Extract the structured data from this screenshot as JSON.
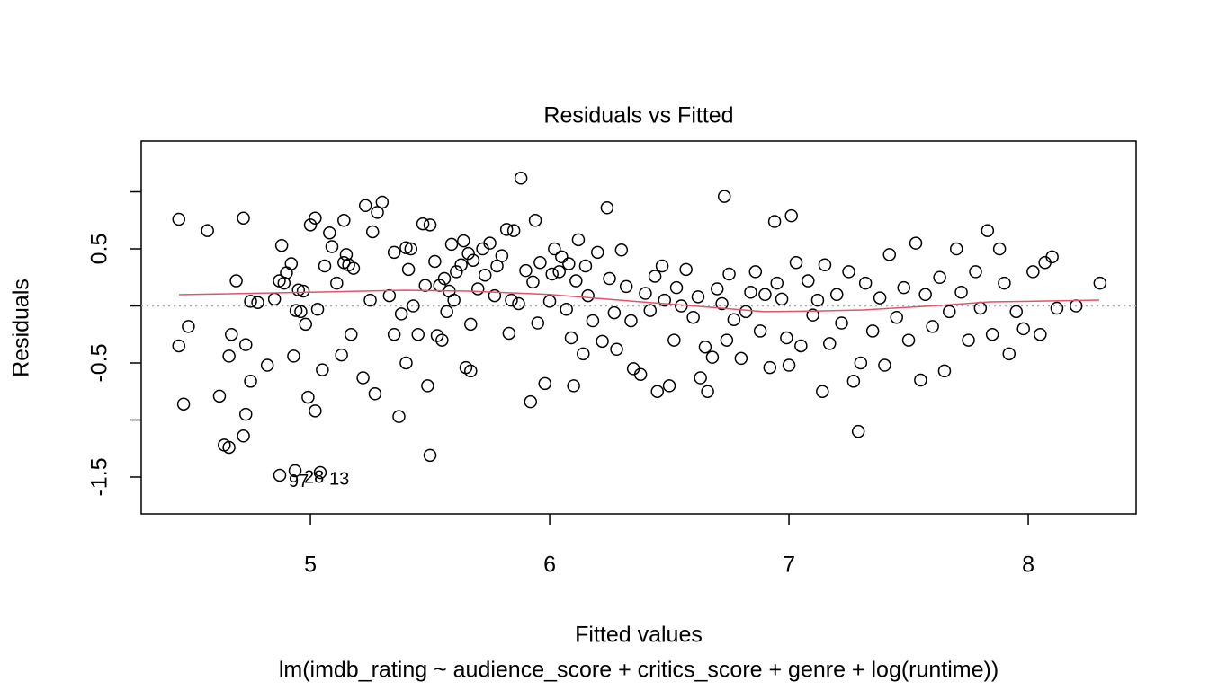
{
  "chart_data": {
    "type": "scatter",
    "title": "Residuals vs Fitted",
    "x_label": "Fitted values",
    "subtitle": "lm(imdb_rating ~ audience_score + critics_score + genre + log(runtime))",
    "y_label": "Residuals",
    "xlim": [
      4.293,
      8.451
    ],
    "ylim": [
      -1.823,
      1.445
    ],
    "xticks": [
      5,
      6,
      7,
      8
    ],
    "yticks": [
      -1.5,
      -0.5,
      0.5
    ],
    "yminorticks": [
      -1,
      0,
      1
    ],
    "reference_line": 0,
    "point_color": "#000000",
    "smooth_color": "#df536b",
    "points": [
      [
        4.45,
        0.76
      ],
      [
        4.45,
        -0.35
      ],
      [
        4.47,
        -0.86
      ],
      [
        4.49,
        -0.18
      ],
      [
        4.57,
        0.66
      ],
      [
        4.62,
        -0.79
      ],
      [
        4.64,
        -1.22
      ],
      [
        4.66,
        -0.44
      ],
      [
        4.66,
        -1.24
      ],
      [
        4.67,
        -0.25
      ],
      [
        4.69,
        0.22
      ],
      [
        4.72,
        0.77
      ],
      [
        4.72,
        -1.14
      ],
      [
        4.73,
        -0.34
      ],
      [
        4.73,
        -0.95
      ],
      [
        4.75,
        0.04
      ],
      [
        4.75,
        -0.66
      ],
      [
        4.78,
        0.03
      ],
      [
        4.82,
        -0.52
      ],
      [
        4.85,
        0.06
      ],
      [
        4.87,
        0.22
      ],
      [
        4.88,
        0.53
      ],
      [
        4.89,
        0.2
      ],
      [
        4.9,
        0.29
      ],
      [
        4.92,
        0.37
      ],
      [
        4.93,
        -0.44
      ],
      [
        4.94,
        -0.04
      ],
      [
        4.95,
        0.14
      ],
      [
        4.96,
        -0.05
      ],
      [
        4.97,
        0.13
      ],
      [
        4.98,
        -0.16
      ],
      [
        4.99,
        -0.8
      ],
      [
        5.0,
        0.71
      ],
      [
        5.02,
        -0.92
      ],
      [
        5.02,
        0.77
      ],
      [
        5.03,
        -0.03
      ],
      [
        5.05,
        -0.56
      ],
      [
        5.06,
        0.35
      ],
      [
        5.08,
        0.64
      ],
      [
        5.09,
        0.52
      ],
      [
        5.11,
        0.2
      ],
      [
        5.13,
        -0.43
      ],
      [
        5.14,
        0.75
      ],
      [
        5.14,
        0.38
      ],
      [
        5.15,
        0.45
      ],
      [
        5.16,
        0.36
      ],
      [
        5.17,
        -0.25
      ],
      [
        5.18,
        0.33
      ],
      [
        5.22,
        -0.63
      ],
      [
        5.23,
        0.88
      ],
      [
        5.25,
        0.05
      ],
      [
        5.26,
        0.65
      ],
      [
        5.27,
        -0.77
      ],
      [
        5.28,
        0.82
      ],
      [
        5.3,
        0.91
      ],
      [
        5.33,
        0.09
      ],
      [
        5.35,
        -0.25
      ],
      [
        5.35,
        0.47
      ],
      [
        5.37,
        -0.97
      ],
      [
        5.38,
        -0.07
      ],
      [
        5.4,
        0.51
      ],
      [
        5.4,
        -0.5
      ],
      [
        5.41,
        0.32
      ],
      [
        5.42,
        0.5
      ],
      [
        5.43,
        0.0
      ],
      [
        5.45,
        -0.25
      ],
      [
        5.47,
        0.72
      ],
      [
        5.48,
        0.18
      ],
      [
        5.49,
        -0.7
      ],
      [
        5.5,
        0.71
      ],
      [
        5.5,
        -1.31
      ],
      [
        5.52,
        0.39
      ],
      [
        5.53,
        -0.26
      ],
      [
        5.54,
        0.18
      ],
      [
        5.55,
        -0.3
      ],
      [
        5.56,
        0.24
      ],
      [
        5.57,
        -0.05
      ],
      [
        5.58,
        0.13
      ],
      [
        5.59,
        0.54
      ],
      [
        5.6,
        0.05
      ],
      [
        5.61,
        0.3
      ],
      [
        5.63,
        0.36
      ],
      [
        5.64,
        0.57
      ],
      [
        5.65,
        -0.54
      ],
      [
        5.66,
        0.46
      ],
      [
        5.67,
        -0.57
      ],
      [
        5.67,
        -0.16
      ],
      [
        5.68,
        0.4
      ],
      [
        5.7,
        0.15
      ],
      [
        5.72,
        0.5
      ],
      [
        5.73,
        0.27
      ],
      [
        5.75,
        0.55
      ],
      [
        5.77,
        0.09
      ],
      [
        5.78,
        0.35
      ],
      [
        5.8,
        0.44
      ],
      [
        5.82,
        0.67
      ],
      [
        5.83,
        -0.24
      ],
      [
        5.84,
        0.05
      ],
      [
        5.85,
        0.66
      ],
      [
        5.87,
        0.02
      ],
      [
        5.88,
        1.12
      ],
      [
        5.9,
        0.31
      ],
      [
        5.92,
        -0.84
      ],
      [
        5.93,
        0.21
      ],
      [
        5.94,
        0.75
      ],
      [
        5.95,
        -0.15
      ],
      [
        5.96,
        0.38
      ],
      [
        5.98,
        -0.68
      ],
      [
        6.0,
        0.04
      ],
      [
        6.01,
        0.28
      ],
      [
        6.02,
        0.5
      ],
      [
        6.04,
        0.3
      ],
      [
        6.05,
        0.43
      ],
      [
        6.07,
        -0.03
      ],
      [
        6.08,
        0.37
      ],
      [
        6.09,
        -0.28
      ],
      [
        6.1,
        -0.7
      ],
      [
        6.11,
        0.22
      ],
      [
        6.12,
        0.58
      ],
      [
        6.14,
        -0.42
      ],
      [
        6.15,
        0.35
      ],
      [
        6.16,
        0.09
      ],
      [
        6.18,
        -0.13
      ],
      [
        6.2,
        0.47
      ],
      [
        6.22,
        -0.31
      ],
      [
        6.24,
        0.86
      ],
      [
        6.25,
        0.24
      ],
      [
        6.27,
        -0.06
      ],
      [
        6.28,
        -0.38
      ],
      [
        6.3,
        0.49
      ],
      [
        6.32,
        0.17
      ],
      [
        6.34,
        -0.13
      ],
      [
        6.35,
        -0.55
      ],
      [
        6.38,
        -0.6
      ],
      [
        6.4,
        0.11
      ],
      [
        6.42,
        -0.04
      ],
      [
        6.44,
        0.26
      ],
      [
        6.45,
        -0.75
      ],
      [
        6.47,
        0.35
      ],
      [
        6.48,
        0.05
      ],
      [
        6.5,
        -0.7
      ],
      [
        6.52,
        -0.3
      ],
      [
        6.53,
        0.16
      ],
      [
        6.55,
        0.0
      ],
      [
        6.57,
        0.32
      ],
      [
        6.6,
        -0.1
      ],
      [
        6.62,
        0.08
      ],
      [
        6.63,
        -0.63
      ],
      [
        6.65,
        -0.36
      ],
      [
        6.66,
        -0.75
      ],
      [
        6.68,
        -0.45
      ],
      [
        6.7,
        0.15
      ],
      [
        6.72,
        0.02
      ],
      [
        6.73,
        0.96
      ],
      [
        6.74,
        -0.3
      ],
      [
        6.75,
        0.28
      ],
      [
        6.77,
        -0.12
      ],
      [
        6.8,
        -0.46
      ],
      [
        6.82,
        -0.05
      ],
      [
        6.84,
        0.12
      ],
      [
        6.86,
        0.3
      ],
      [
        6.88,
        -0.22
      ],
      [
        6.9,
        0.1
      ],
      [
        6.92,
        -0.54
      ],
      [
        6.94,
        0.74
      ],
      [
        6.95,
        0.2
      ],
      [
        6.97,
        0.06
      ],
      [
        6.99,
        -0.28
      ],
      [
        7.0,
        -0.52
      ],
      [
        7.01,
        0.79
      ],
      [
        7.03,
        0.38
      ],
      [
        7.05,
        -0.35
      ],
      [
        7.08,
        0.22
      ],
      [
        7.1,
        -0.08
      ],
      [
        7.12,
        0.05
      ],
      [
        7.14,
        -0.75
      ],
      [
        7.15,
        0.36
      ],
      [
        7.17,
        -0.33
      ],
      [
        7.2,
        0.1
      ],
      [
        7.22,
        -0.15
      ],
      [
        7.25,
        0.3
      ],
      [
        7.27,
        -0.66
      ],
      [
        7.29,
        -1.1
      ],
      [
        7.3,
        -0.5
      ],
      [
        7.32,
        0.2
      ],
      [
        7.35,
        -0.22
      ],
      [
        7.38,
        0.07
      ],
      [
        7.4,
        -0.52
      ],
      [
        7.42,
        0.45
      ],
      [
        7.45,
        -0.1
      ],
      [
        7.48,
        0.16
      ],
      [
        7.5,
        -0.3
      ],
      [
        7.53,
        0.55
      ],
      [
        7.55,
        -0.65
      ],
      [
        7.57,
        0.1
      ],
      [
        7.6,
        -0.18
      ],
      [
        7.63,
        0.25
      ],
      [
        7.65,
        -0.57
      ],
      [
        7.67,
        -0.05
      ],
      [
        7.7,
        0.5
      ],
      [
        7.72,
        0.12
      ],
      [
        7.75,
        -0.3
      ],
      [
        7.78,
        0.3
      ],
      [
        7.8,
        -0.02
      ],
      [
        7.83,
        0.66
      ],
      [
        7.85,
        -0.25
      ],
      [
        7.88,
        0.5
      ],
      [
        7.9,
        0.2
      ],
      [
        7.92,
        -0.42
      ],
      [
        7.95,
        -0.05
      ],
      [
        7.98,
        -0.2
      ],
      [
        8.02,
        0.3
      ],
      [
        8.05,
        -0.25
      ],
      [
        8.07,
        0.38
      ],
      [
        8.1,
        0.43
      ],
      [
        8.12,
        -0.02
      ],
      [
        8.2,
        0.0
      ],
      [
        8.3,
        0.2
      ]
    ],
    "labeled_points": [
      {
        "label": "97",
        "x": 4.872,
        "y": -1.484
      },
      {
        "label": "28",
        "x": 4.936,
        "y": -1.445
      },
      {
        "label": "13",
        "x": 5.041,
        "y": -1.461
      }
    ],
    "smooth": {
      "x": [
        4.451,
        5.0,
        5.395,
        5.66,
        6.0,
        6.335,
        6.6,
        6.898,
        7.1,
        7.31,
        7.6,
        7.84,
        8.297
      ],
      "y": [
        0.098,
        0.12,
        0.138,
        0.13,
        0.1,
        0.043,
        0.0,
        -0.05,
        -0.045,
        -0.035,
        0.0,
        0.035,
        0.051
      ]
    }
  }
}
